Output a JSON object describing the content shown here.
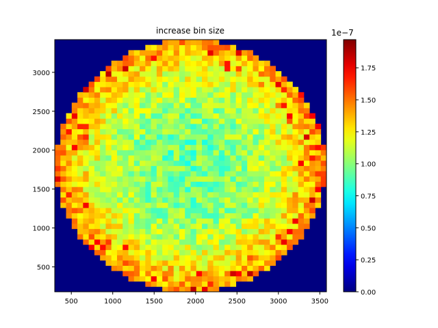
{
  "chart_data": {
    "type": "heatmap",
    "title": "increase bin size",
    "xlabel": "",
    "ylabel": "",
    "xlim": [
      300,
      3580
    ],
    "ylim": [
      180,
      3420
    ],
    "grid_cols": 48,
    "grid_rows": 48,
    "x_ticks": [
      500,
      1000,
      1500,
      2000,
      2500,
      3000,
      3500
    ],
    "y_ticks": [
      500,
      1000,
      1500,
      2000,
      2500,
      3000
    ],
    "disk": {
      "center_x": 1940,
      "center_y": 1800,
      "radius": 1625
    },
    "value_profile": {
      "center": 0.95,
      "edge": 1.45,
      "background": 0.0
    },
    "colormap": "jet",
    "colorbar": {
      "min": 0.0,
      "max": 1.97,
      "ticks": [
        0.0,
        0.25,
        0.5,
        0.75,
        1.0,
        1.25,
        1.5,
        1.75
      ],
      "tick_labels": [
        "0.00",
        "0.25",
        "0.50",
        "0.75",
        "1.00",
        "1.25",
        "1.50",
        "1.75"
      ],
      "offset_label": "1e−7"
    }
  }
}
